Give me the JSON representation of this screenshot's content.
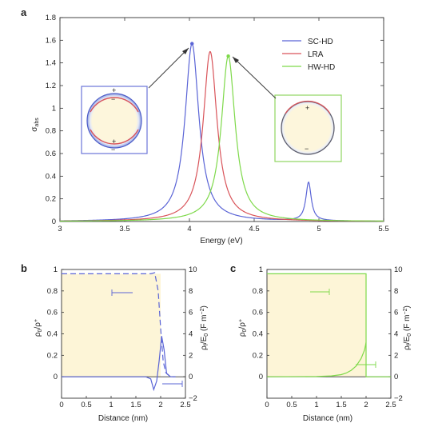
{
  "chart_data": [
    {
      "type": "line",
      "panel_label": "a",
      "xlabel": "Energy (eV)",
      "ylabel": "σ_abs",
      "xlim": [
        3,
        5.5
      ],
      "ylim": [
        0,
        1.8
      ],
      "x_ticks": [
        "3",
        "3.5",
        "4",
        "4.5",
        "5",
        "5.5"
      ],
      "y_ticks": [
        "0",
        "0.2",
        "0.4",
        "0.6",
        "0.8",
        "1",
        "1.2",
        "1.4",
        "1.6",
        "1.8"
      ],
      "legend_position": "top-right",
      "series": [
        {
          "name": "SC-HD",
          "color": "#5a64d6",
          "peaks": [
            {
              "center": 4.02,
              "height": 1.57,
              "width": 0.065
            },
            {
              "center": 4.92,
              "height": 0.34,
              "width": 0.025
            }
          ]
        },
        {
          "name": "LRA",
          "color": "#d9545a",
          "peaks": [
            {
              "center": 4.16,
              "height": 1.5,
              "width": 0.065
            }
          ]
        },
        {
          "name": "HW-HD",
          "color": "#7ed94a",
          "peaks": [
            {
              "center": 4.3,
              "height": 1.46,
              "width": 0.065
            }
          ]
        }
      ],
      "insets": [
        {
          "name": "SC-HD charge map",
          "border_color": "#6b74d8",
          "signs": [
            "+",
            "−",
            "+",
            "−"
          ]
        },
        {
          "name": "HW-HD charge map",
          "border_color": "#8fd660",
          "signs": [
            "+",
            "−"
          ]
        }
      ]
    },
    {
      "type": "line",
      "panel_label": "b",
      "xlabel": "Distance (nm)",
      "ylabel_left": "ρ0/ρ+",
      "ylabel_right": "ρf/E0 (F m−2)",
      "xlim": [
        0,
        2.5
      ],
      "ylim_left": [
        -0.2,
        1.0
      ],
      "ylim_right": [
        -2,
        10
      ],
      "x_ticks": [
        "0",
        "0.5",
        "1",
        "1.5",
        "2",
        "2.5"
      ],
      "y_ticks_left": [
        "0",
        "0.2",
        "0.4",
        "0.6",
        "0.8",
        "1"
      ],
      "y_ticks_right": [
        "−2",
        "0",
        "2",
        "4",
        "6",
        "8",
        "10"
      ],
      "series": [
        {
          "name": "ρ0/ρ+ (dashed)",
          "color": "#5a64d6",
          "style": "dashed",
          "x": [
            0,
            1.8,
            1.88,
            1.95,
            2.0,
            2.05,
            2.1,
            2.2,
            2.3
          ],
          "y": [
            0.96,
            0.96,
            0.97,
            0.8,
            0.45,
            0.15,
            0.04,
            0.0,
            0.0
          ]
        },
        {
          "name": "ρf/E0 (solid)",
          "color": "#5a64d6",
          "style": "solid",
          "x": [
            0,
            1.7,
            1.8,
            1.86,
            1.92,
            1.97,
            2.02,
            2.07,
            2.12,
            2.2,
            2.3
          ],
          "y": [
            0,
            0,
            -0.2,
            -1.2,
            -0.4,
            1.5,
            3.8,
            2.5,
            0.3,
            0.0,
            0.0
          ]
        }
      ],
      "shaded_region": {
        "x": [
          0,
          2.0
        ],
        "color": "#fdf5d7"
      }
    },
    {
      "type": "line",
      "panel_label": "c",
      "xlabel": "Distance (nm)",
      "ylabel_left": "ρ0/ρ+",
      "ylabel_right": "ρf/E0 (F m−2)",
      "xlim": [
        0,
        2.5
      ],
      "ylim_left": [
        -0.2,
        1.0
      ],
      "ylim_right": [
        -2,
        10
      ],
      "x_ticks": [
        "0",
        "0.5",
        "1",
        "1.5",
        "2",
        "2.5"
      ],
      "y_ticks_left": [
        "0",
        "0.2",
        "0.4",
        "0.6",
        "0.8",
        "1"
      ],
      "y_ticks_right": [
        "−2",
        "0",
        "2",
        "4",
        "6",
        "8",
        "10"
      ],
      "series": [
        {
          "name": "ρ0/ρ+ (step)",
          "color": "#7ed94a",
          "style": "solid",
          "x": [
            0,
            2.0,
            2.0,
            2.5
          ],
          "y": [
            0.96,
            0.96,
            0.0,
            0.0
          ]
        },
        {
          "name": "ρf/E0 (solid)",
          "color": "#7ed94a",
          "style": "solid",
          "x": [
            0,
            1.0,
            1.3,
            1.5,
            1.6,
            1.7,
            1.8,
            1.9,
            1.97,
            2.0
          ],
          "y": [
            0,
            0.02,
            0.08,
            0.2,
            0.35,
            0.6,
            1.0,
            1.7,
            2.5,
            3.2
          ]
        }
      ],
      "shaded_region": {
        "x": [
          0,
          2.0
        ],
        "color": "#fdf5d7"
      }
    }
  ]
}
